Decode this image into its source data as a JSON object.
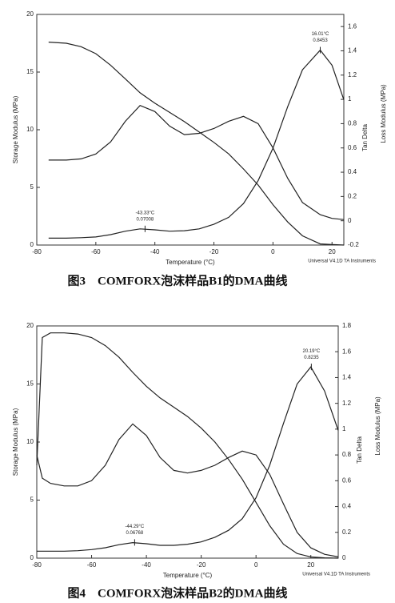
{
  "chart_data": [
    {
      "type": "line",
      "xlabel": "Temperature (°C)",
      "ylabel": "Storage Modulus (MPa)",
      "y2label": "Loss Modulus (MPa)",
      "y3label": "Tan Delta",
      "instrument": "Universal V4.1D TA Instruments",
      "caption": "图3　COMFORX泡沫样品B1的DMA曲线",
      "x": [
        -76,
        -70,
        -65,
        -60,
        -55,
        -50,
        -45,
        -40,
        -35,
        -30,
        -25,
        -20,
        -15,
        -10,
        -5,
        0,
        5,
        10,
        16,
        20,
        24
      ],
      "xlim": [
        -80,
        24
      ],
      "xticks": [
        -80,
        -60,
        -40,
        -20,
        0,
        20
      ],
      "ylim": [
        0,
        20
      ],
      "yticks": [
        0,
        5,
        10,
        15,
        20
      ],
      "y2lim": [
        -0.2,
        1.7
      ],
      "y2ticks": [
        -0.2,
        0.0,
        0.2,
        0.4,
        0.6,
        0.8,
        1.0,
        1.2,
        1.4,
        1.6
      ],
      "y3lim": [
        0,
        1
      ],
      "series": [
        {
          "color": "#222",
          "axis": "y",
          "values": [
            17.6,
            17.5,
            17.2,
            16.6,
            15.6,
            14.4,
            13.2,
            12.3,
            11.5,
            10.7,
            9.8,
            8.9,
            7.9,
            6.6,
            5.2,
            3.5,
            2.0,
            0.8,
            0.1,
            0.05,
            0
          ]
        },
        {
          "color": "#222",
          "axis": "y2",
          "values": [
            0.5,
            0.5,
            0.51,
            0.55,
            0.65,
            0.82,
            0.95,
            0.9,
            0.78,
            0.71,
            0.72,
            0.76,
            0.82,
            0.86,
            0.8,
            0.6,
            0.35,
            0.15,
            0.05,
            0.02,
            0.01
          ]
        },
        {
          "color": "#222",
          "axis": "y3",
          "values": [
            0.03,
            0.03,
            0.032,
            0.035,
            0.045,
            0.06,
            0.07,
            0.066,
            0.06,
            0.062,
            0.07,
            0.09,
            0.12,
            0.18,
            0.28,
            0.42,
            0.6,
            0.76,
            0.8453,
            0.78,
            0.63
          ]
        }
      ],
      "annotations": [
        {
          "x": 16.01,
          "y": 0.8453,
          "text": [
            "16.01°C",
            "0.8453"
          ]
        },
        {
          "x": -43.33,
          "y": 0.07008,
          "text": [
            "-43.33°C",
            "0.07008"
          ]
        }
      ]
    },
    {
      "type": "line",
      "xlabel": "Temperature (°C)",
      "ylabel": "Storage Modulus (MPa)",
      "y2label": "Loss Modulus (MPa)",
      "y3label": "Tan Delta",
      "instrument": "Universal V4.1D TA Instruments",
      "caption": "图4　COMFORX泡沫样品B2的DMA曲线",
      "x": [
        -80,
        -78,
        -75,
        -70,
        -65,
        -60,
        -55,
        -50,
        -45,
        -40,
        -35,
        -30,
        -25,
        -20,
        -15,
        -10,
        -5,
        0,
        5,
        10,
        15,
        20,
        25,
        30
      ],
      "xlim": [
        -80,
        30
      ],
      "xticks": [
        -80,
        -60,
        -40,
        -20,
        0,
        20
      ],
      "ylim": [
        0,
        20
      ],
      "yticks": [
        0,
        5,
        10,
        15,
        20
      ],
      "y2lim": [
        0,
        1.8
      ],
      "y2ticks": [
        0.0,
        0.2,
        0.4,
        0.6,
        0.8,
        1.0,
        1.2,
        1.4,
        1.6,
        1.8
      ],
      "y3lim": [
        0,
        1
      ],
      "series": [
        {
          "color": "#222",
          "axis": "y",
          "values": [
            8,
            19.0,
            19.4,
            19.4,
            19.3,
            19.0,
            18.3,
            17.3,
            16.0,
            14.8,
            13.8,
            13.0,
            12.2,
            11.2,
            10.0,
            8.5,
            6.8,
            4.8,
            2.8,
            1.2,
            0.4,
            0.1,
            0.03,
            0
          ]
        },
        {
          "color": "#222",
          "axis": "y2",
          "values": [
            0.8,
            0.62,
            0.58,
            0.56,
            0.56,
            0.6,
            0.72,
            0.92,
            1.04,
            0.95,
            0.78,
            0.68,
            0.66,
            0.68,
            0.72,
            0.78,
            0.83,
            0.8,
            0.65,
            0.42,
            0.2,
            0.08,
            0.03,
            0.01
          ]
        },
        {
          "color": "#222",
          "axis": "y3",
          "values": [
            0.03,
            0.03,
            0.03,
            0.03,
            0.032,
            0.037,
            0.045,
            0.058,
            0.067,
            0.062,
            0.055,
            0.055,
            0.06,
            0.07,
            0.09,
            0.12,
            0.17,
            0.26,
            0.4,
            0.58,
            0.75,
            0.8235,
            0.72,
            0.55
          ]
        }
      ],
      "annotations": [
        {
          "x": 20.19,
          "y": 0.8235,
          "text": [
            "20.19°C",
            "0.8235"
          ]
        },
        {
          "x": -44.29,
          "y": 0.06768,
          "text": [
            "-44.29°C",
            "0.06768"
          ]
        }
      ]
    }
  ]
}
